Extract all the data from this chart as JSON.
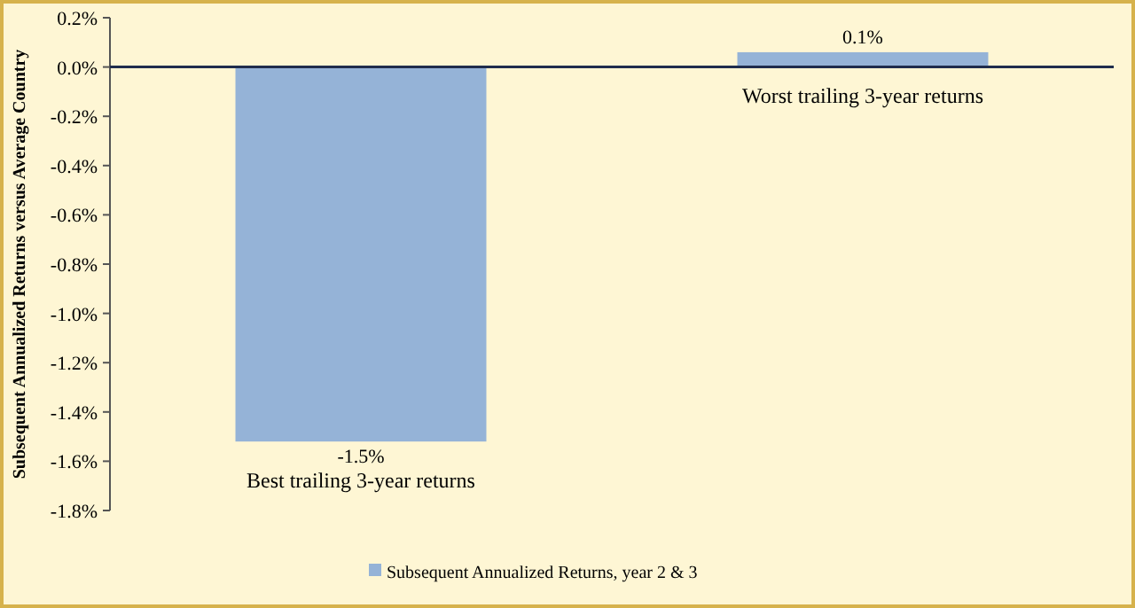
{
  "chart_data": {
    "type": "bar",
    "ylabel": "Subsequent Annualized Returns versus Average Country",
    "categories": [
      "Best trailing  3-year returns",
      "Worst trailing  3-year returns"
    ],
    "series": [
      {
        "name": "Subsequent Annualized Returns, year 2 & 3",
        "color": "#95b3d7",
        "values": [
          -1.52,
          0.06
        ],
        "value_labels": [
          "-1.5%",
          "0.1%"
        ]
      }
    ],
    "ylim": [
      -1.8,
      0.2
    ],
    "yticks": [
      {
        "value": 0.2,
        "label": "0.2%"
      },
      {
        "value": 0,
        "label": "0.0%"
      },
      {
        "value": -0.2,
        "label": "-0.2%"
      },
      {
        "value": -0.4,
        "label": "-0.4%"
      },
      {
        "value": -0.6,
        "label": "-0.6%"
      },
      {
        "value": -0.8,
        "label": "-0.8%"
      },
      {
        "value": -1,
        "label": "-1.0%"
      },
      {
        "value": -1.2,
        "label": "-1.2%"
      },
      {
        "value": -1.4,
        "label": "-1.4%"
      },
      {
        "value": -1.6,
        "label": "-1.6%"
      },
      {
        "value": -1.8,
        "label": "-1.8%"
      }
    ],
    "legend": "bottom"
  }
}
